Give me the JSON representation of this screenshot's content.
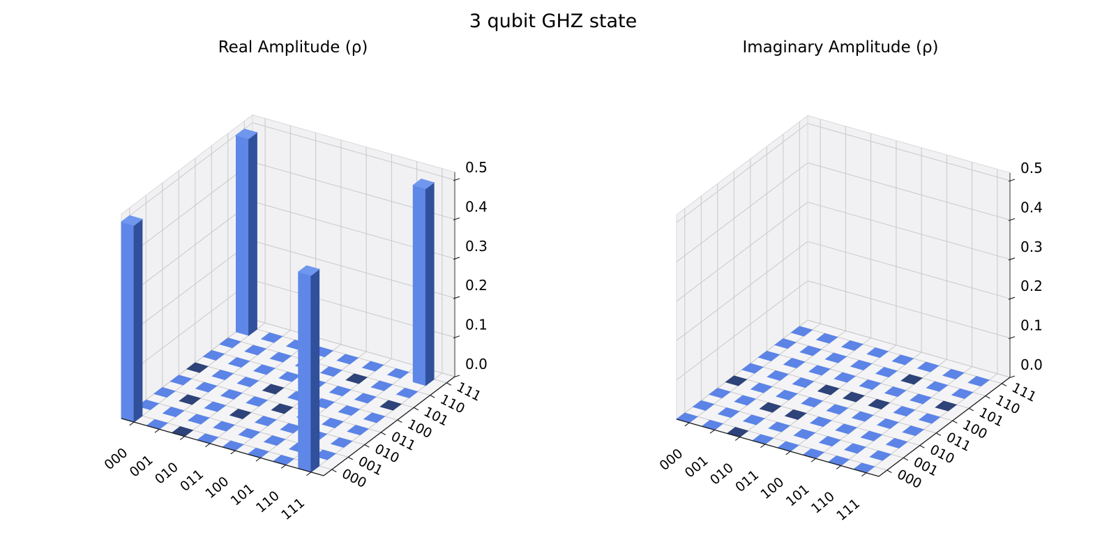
{
  "figure": {
    "title": "3 qubit GHZ state",
    "background": "#ffffff"
  },
  "plots": [
    {
      "id": "real",
      "title": "Real Amplitude (ρ)",
      "x_tick_labels": [
        "000",
        "001",
        "010",
        "011",
        "100",
        "101",
        "110",
        "111"
      ],
      "y_tick_labels": [
        "000",
        "001",
        "010",
        "011",
        "100",
        "101",
        "110",
        "111"
      ],
      "z_tick_labels": [
        "0.0",
        "0.1",
        "0.2",
        "0.3",
        "0.4",
        "0.5"
      ],
      "bars": [
        {
          "x": 0,
          "y": 0,
          "row": "000",
          "col": "000",
          "value": 0.5
        },
        {
          "x": 0,
          "y": 7,
          "row": "000",
          "col": "111",
          "value": 0.5
        },
        {
          "x": 7,
          "y": 0,
          "row": "111",
          "col": "000",
          "value": 0.5
        },
        {
          "x": 7,
          "y": 7,
          "row": "111",
          "col": "111",
          "value": 0.5
        }
      ],
      "dark_cells": [
        [
          0,
          4
        ],
        [
          1,
          2
        ],
        [
          2,
          0
        ],
        [
          3,
          2
        ],
        [
          3,
          4
        ],
        [
          4,
          3
        ],
        [
          5,
          6
        ],
        [
          7,
          5
        ]
      ]
    },
    {
      "id": "imag",
      "title": "Imaginary Amplitude (ρ)",
      "x_tick_labels": [
        "000",
        "001",
        "010",
        "011",
        "100",
        "101",
        "110",
        "111"
      ],
      "y_tick_labels": [
        "000",
        "001",
        "010",
        "011",
        "100",
        "101",
        "110",
        "111"
      ],
      "z_tick_labels": [
        "0.0",
        "0.1",
        "0.2",
        "0.3",
        "0.4",
        "0.5"
      ],
      "bars": [],
      "dark_cells": [
        [
          0,
          3
        ],
        [
          2,
          0
        ],
        [
          2,
          2
        ],
        [
          3,
          2
        ],
        [
          3,
          4
        ],
        [
          4,
          4
        ],
        [
          5,
          4
        ],
        [
          5,
          6
        ],
        [
          7,
          5
        ]
      ]
    }
  ],
  "colors": {
    "bar_top": "#7097ee",
    "bar_front": "#5f87e8",
    "bar_side": "#31509c",
    "tile_light": "#5c84e6",
    "tile_dark": "#2e4379",
    "pane_wall": "#f1f1f4",
    "pane_floor": "#f4f4f6",
    "pane_edge": "#d9d9d9",
    "grid": "#c9c9c9",
    "axis_line": "#1a1a1a",
    "z_axis_line": "#444444",
    "text": "#000000"
  },
  "chart_data": [
    {
      "type": "bar",
      "title": "Real Amplitude (ρ)",
      "suptitle": "3 qubit GHZ state",
      "x_categories": [
        "000",
        "001",
        "010",
        "011",
        "100",
        "101",
        "110",
        "111"
      ],
      "y_categories": [
        "000",
        "001",
        "010",
        "011",
        "100",
        "101",
        "110",
        "111"
      ],
      "zlim": [
        0.0,
        0.5
      ],
      "z_ticks": [
        0.0,
        0.1,
        0.2,
        0.3,
        0.4,
        0.5
      ],
      "legend": "none",
      "grid": true,
      "matrix": [
        [
          0.5,
          0,
          0,
          0,
          0,
          0,
          0,
          0.5
        ],
        [
          0,
          0,
          0,
          0,
          0,
          0,
          0,
          0
        ],
        [
          0,
          0,
          0,
          0,
          0,
          0,
          0,
          0
        ],
        [
          0,
          0,
          0,
          0,
          0,
          0,
          0,
          0
        ],
        [
          0,
          0,
          0,
          0,
          0,
          0,
          0,
          0
        ],
        [
          0,
          0,
          0,
          0,
          0,
          0,
          0,
          0
        ],
        [
          0,
          0,
          0,
          0,
          0,
          0,
          0,
          0
        ],
        [
          0.5,
          0,
          0,
          0,
          0,
          0,
          0,
          0.5
        ]
      ]
    },
    {
      "type": "bar",
      "title": "Imaginary Amplitude (ρ)",
      "suptitle": "3 qubit GHZ state",
      "x_categories": [
        "000",
        "001",
        "010",
        "011",
        "100",
        "101",
        "110",
        "111"
      ],
      "y_categories": [
        "000",
        "001",
        "010",
        "011",
        "100",
        "101",
        "110",
        "111"
      ],
      "zlim": [
        0.0,
        0.5
      ],
      "z_ticks": [
        0.0,
        0.1,
        0.2,
        0.3,
        0.4,
        0.5
      ],
      "legend": "none",
      "grid": true,
      "matrix": [
        [
          0,
          0,
          0,
          0,
          0,
          0,
          0,
          0
        ],
        [
          0,
          0,
          0,
          0,
          0,
          0,
          0,
          0
        ],
        [
          0,
          0,
          0,
          0,
          0,
          0,
          0,
          0
        ],
        [
          0,
          0,
          0,
          0,
          0,
          0,
          0,
          0
        ],
        [
          0,
          0,
          0,
          0,
          0,
          0,
          0,
          0
        ],
        [
          0,
          0,
          0,
          0,
          0,
          0,
          0,
          0
        ],
        [
          0,
          0,
          0,
          0,
          0,
          0,
          0,
          0
        ],
        [
          0,
          0,
          0,
          0,
          0,
          0,
          0,
          0
        ]
      ]
    }
  ]
}
